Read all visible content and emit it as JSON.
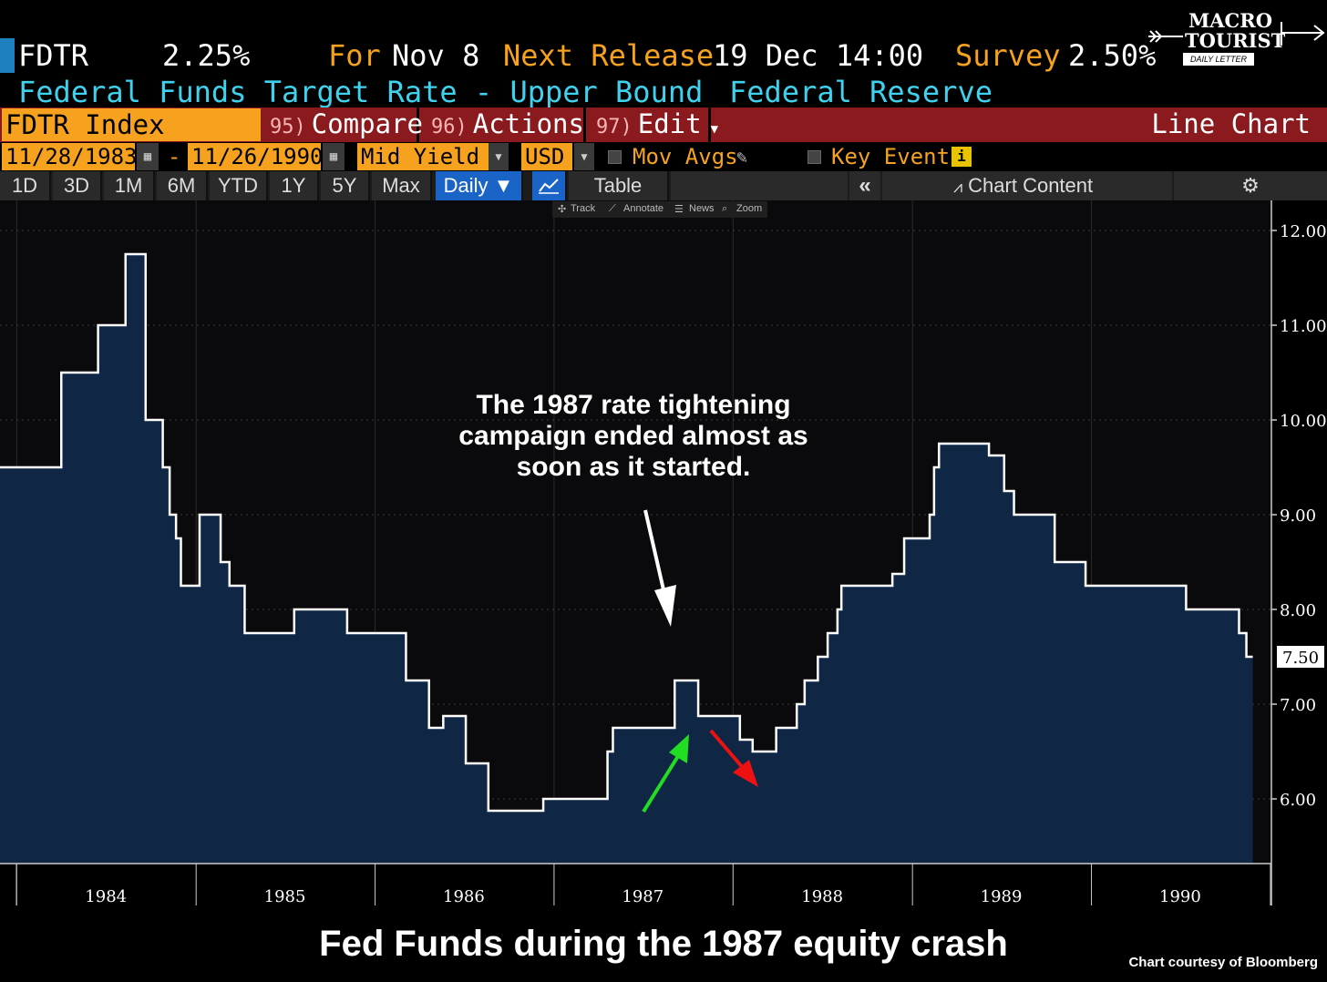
{
  "header": {
    "ticker": "FDTR",
    "value": "2.25%",
    "for_label": "For",
    "for_date": "Nov 8",
    "next_release_label": "Next Release",
    "next_release_value": "19 Dec 14:00",
    "survey_label": "Survey",
    "survey_value": "2.50%",
    "security_name": "Federal Funds Target Rate - Upper Bound",
    "source": "Federal Reserve"
  },
  "logo": {
    "line1": "MACRO",
    "line2": "TOURIST",
    "line3": "DAILY LETTER"
  },
  "toolbar": {
    "index_field": "FDTR Index",
    "compare_num": "95)",
    "compare_label": "Compare",
    "actions_num": "96)",
    "actions_label": "Actions",
    "edit_num": "97)",
    "edit_label": "Edit",
    "chart_type": "Line Chart"
  },
  "date_row": {
    "start_date": "11/28/1983",
    "separator": "-",
    "end_date": "11/26/1990",
    "field": "Mid Yield",
    "currency": "USD",
    "mov_avgs": "Mov Avgs",
    "key_events": "Key Events"
  },
  "periods": {
    "items": [
      "1D",
      "3D",
      "1M",
      "6M",
      "YTD",
      "1Y",
      "5Y",
      "Max"
    ],
    "frequency": "Daily",
    "table": "Table",
    "chart_content": "Chart Content"
  },
  "mini_toolbar": {
    "track": "Track",
    "annotate": "Annotate",
    "news": "News",
    "zoom": "Zoom"
  },
  "annotation": {
    "line1": "The 1987 rate tightening",
    "line2": "campaign ended almost as",
    "line3": "soon as it started."
  },
  "caption": "Fed Funds during the 1987 equity crash",
  "credit": "Chart courtesy of Bloomberg",
  "colors": {
    "background": "#000000",
    "area_fill": "#0f2745",
    "line": "#ffffff",
    "header_orange": "#f6a21e",
    "header_cyan": "#3fd2ee",
    "toolbar_red": "#8b1a1f",
    "arrow_green": "#22dd22",
    "arrow_red": "#ee1111"
  },
  "chart_data": {
    "type": "area",
    "title": "",
    "xlabel": "",
    "ylabel": "",
    "x_ticks": [
      "1984",
      "1985",
      "1986",
      "1987",
      "1988",
      "1989",
      "1990"
    ],
    "y_ticks": [
      "6.00",
      "7.00",
      "8.00",
      "9.00",
      "10.00",
      "11.00",
      "12.00"
    ],
    "ylim": [
      5.3,
      12.2
    ],
    "last_value_label": "7.50",
    "step": true,
    "series": [
      {
        "points": [
          [
            "1983-11-28",
            9.5
          ],
          [
            "1984-04-01",
            10.5
          ],
          [
            "1984-06-15",
            11.0
          ],
          [
            "1984-08-10",
            11.75
          ],
          [
            "1984-09-20",
            10.0
          ],
          [
            "1984-10-25",
            9.5
          ],
          [
            "1984-11-08",
            9.0
          ],
          [
            "1984-11-21",
            8.75
          ],
          [
            "1984-12-01",
            8.25
          ],
          [
            "1985-01-08",
            9.0
          ],
          [
            "1985-02-20",
            8.5
          ],
          [
            "1985-03-10",
            8.25
          ],
          [
            "1985-04-10",
            7.75
          ],
          [
            "1985-07-20",
            8.0
          ],
          [
            "1985-11-05",
            7.75
          ],
          [
            "1986-03-05",
            7.25
          ],
          [
            "1986-04-21",
            6.75
          ],
          [
            "1986-05-20",
            6.875
          ],
          [
            "1986-07-05",
            6.375
          ],
          [
            "1986-08-20",
            5.875
          ],
          [
            "1986-12-10",
            6.0
          ],
          [
            "1987-04-20",
            6.5
          ],
          [
            "1987-05-01",
            6.75
          ],
          [
            "1987-09-04",
            7.25
          ],
          [
            "1987-10-22",
            6.875
          ],
          [
            "1987-11-05",
            6.875
          ],
          [
            "1988-01-15",
            6.625
          ],
          [
            "1988-02-10",
            6.5
          ],
          [
            "1988-03-29",
            6.75
          ],
          [
            "1988-05-10",
            7.0
          ],
          [
            "1988-05-26",
            7.25
          ],
          [
            "1988-06-22",
            7.5
          ],
          [
            "1988-07-12",
            7.75
          ],
          [
            "1988-08-01",
            8.0
          ],
          [
            "1988-08-09",
            8.25
          ],
          [
            "1988-11-21",
            8.375
          ],
          [
            "1988-12-15",
            8.75
          ],
          [
            "1989-02-05",
            9.0
          ],
          [
            "1989-02-14",
            9.5
          ],
          [
            "1989-02-24",
            9.75
          ],
          [
            "1989-06-06",
            9.625
          ],
          [
            "1989-07-07",
            9.25
          ],
          [
            "1989-07-27",
            9.0
          ],
          [
            "1989-10-18",
            8.5
          ],
          [
            "1989-12-20",
            8.25
          ],
          [
            "1990-07-13",
            8.0
          ],
          [
            "1990-10-29",
            7.75
          ],
          [
            "1990-11-13",
            7.5
          ],
          [
            "1990-11-26",
            7.5
          ]
        ]
      }
    ]
  }
}
